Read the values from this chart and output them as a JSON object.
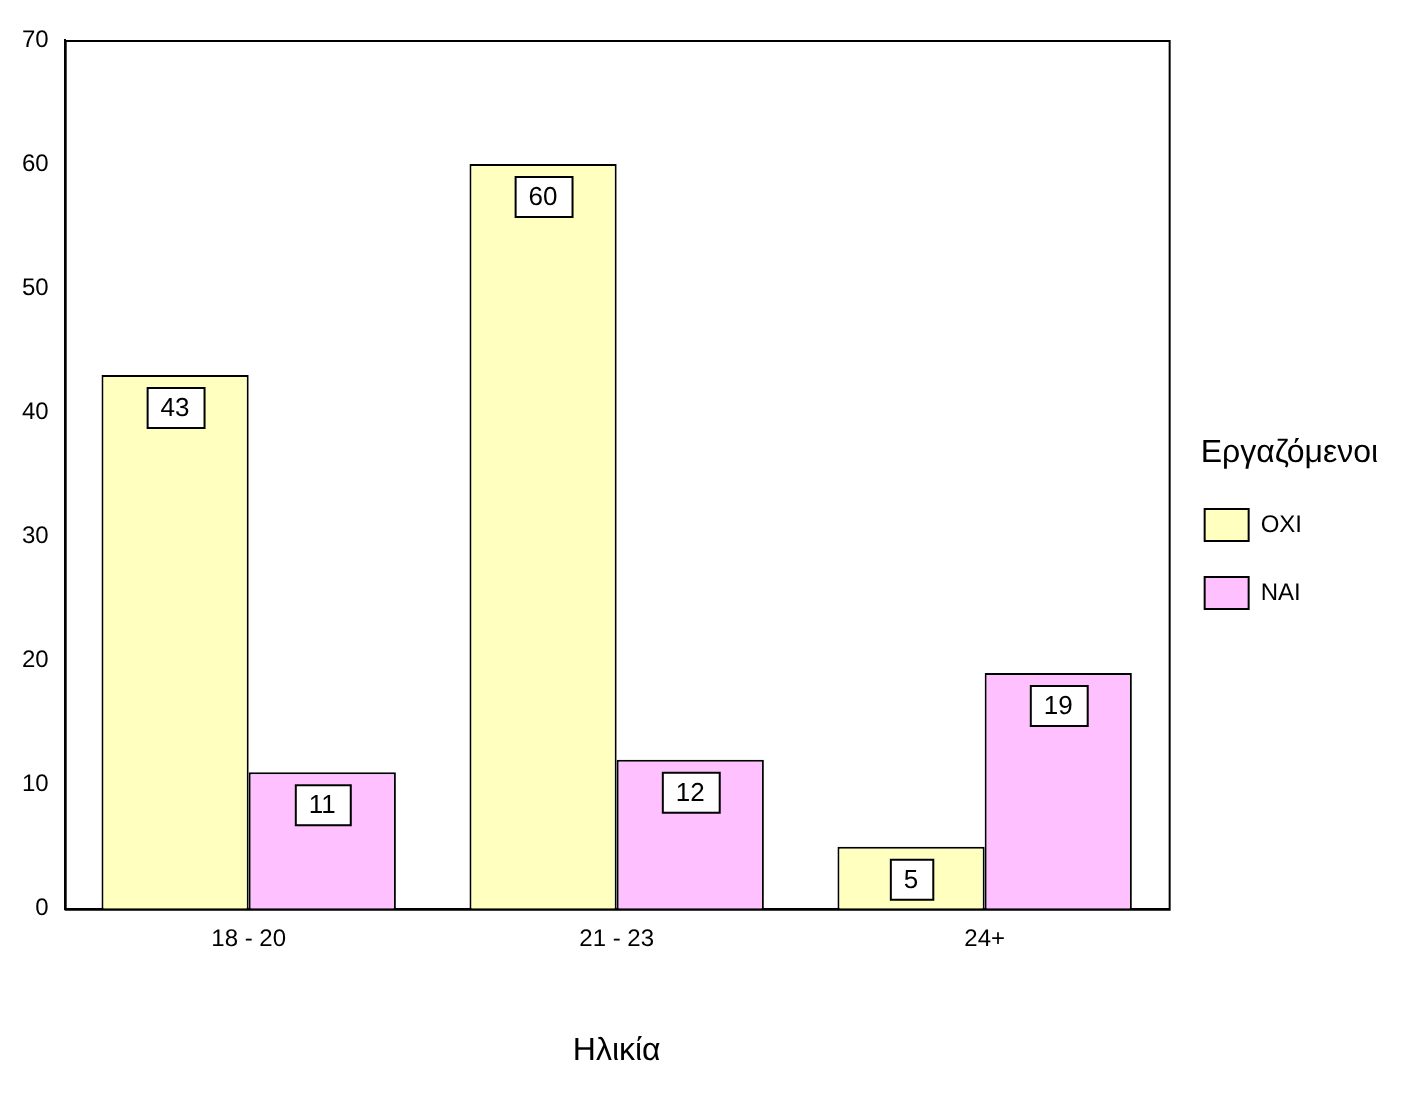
{
  "chart_data": {
    "type": "bar",
    "xlabel": "Ηλικία",
    "legend_title": "Εργαζόμενοι",
    "categories": [
      "18 - 20",
      "21 - 23",
      "24+"
    ],
    "series": [
      {
        "name": "ΟΧΙ",
        "color": "#ffffc0",
        "values": [
          43,
          60,
          5
        ]
      },
      {
        "name": "ΝΑΙ",
        "color": "#ffc0ff",
        "values": [
          11,
          12,
          19
        ]
      }
    ],
    "ylim": [
      0,
      70
    ],
    "yticks": [
      0,
      10,
      20,
      30,
      40,
      50,
      60,
      70
    ],
    "grid": false,
    "legend": "right",
    "data_labels": true
  }
}
